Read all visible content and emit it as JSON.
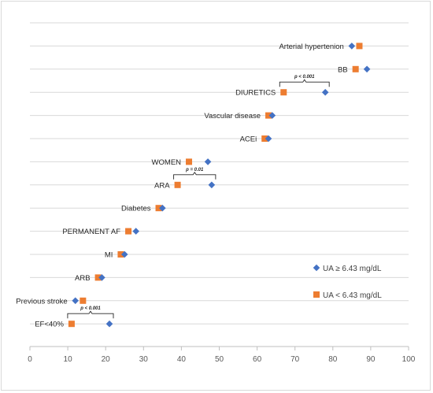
{
  "chart_data": {
    "type": "scatter",
    "title": "",
    "xlabel": "",
    "ylabel": "",
    "xlim": [
      0,
      100
    ],
    "xticks": [
      "0",
      "10",
      "20",
      "30",
      "40",
      "50",
      "60",
      "70",
      "80",
      "90",
      "100"
    ],
    "grid": "horizontal",
    "legend_position": "lower-right",
    "colors": {
      "high": "#4472C4",
      "low": "#ED7D31",
      "grid": "#d9d9d9",
      "axis": "#bfbfbf"
    },
    "categories": [
      "Arterial hypertenion",
      "BB",
      "DIURETICS",
      "Vascular disease",
      "ACEi",
      "WOMEN",
      "ARA",
      "Diabetes",
      "PERMANENT AF",
      "MI",
      "ARB",
      "Previous stroke",
      "EF<40%"
    ],
    "series": [
      {
        "name": "UA ≥ 6.43 mg/dL",
        "marker": "diamond",
        "values": [
          85,
          89,
          78,
          64,
          63,
          47,
          48,
          35,
          28,
          25,
          19,
          12,
          21
        ]
      },
      {
        "name": "UA < 6.43 mg/dL",
        "marker": "square",
        "values": [
          87,
          86,
          67,
          63,
          62,
          42,
          39,
          34,
          26,
          24,
          18,
          14,
          11
        ]
      }
    ],
    "annotations": [
      {
        "category": "DIURETICS",
        "text": "p < 0.001"
      },
      {
        "category": "ARA",
        "text": "p = 0.01"
      },
      {
        "category": "EF<40%",
        "text": "p < 0.001"
      }
    ]
  }
}
